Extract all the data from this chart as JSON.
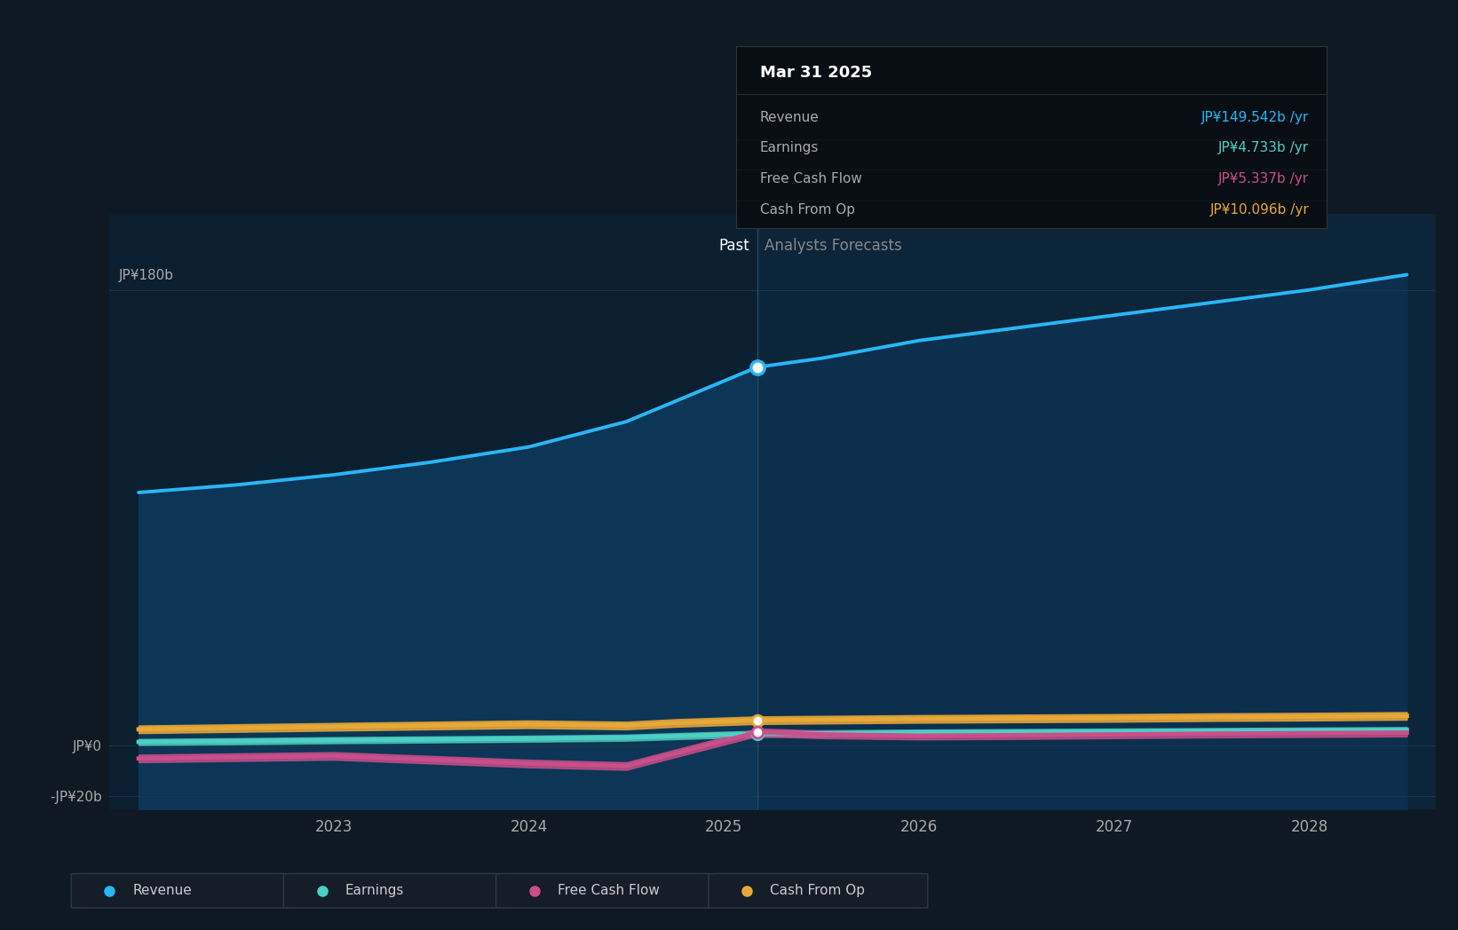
{
  "bg_color": "#0e1923",
  "plot_bg_past": "#0a1f30",
  "plot_bg_future": "#0c2235",
  "grid_color": "#1a3448",
  "x_past": [
    2022.0,
    2022.5,
    2023.0,
    2023.5,
    2024.0,
    2024.5,
    2024.75,
    2025.17
  ],
  "x_future": [
    2025.17,
    2025.5,
    2026.0,
    2026.5,
    2027.0,
    2027.5,
    2028.0,
    2028.5
  ],
  "rev_past": [
    100,
    103,
    107,
    112,
    118,
    128,
    136,
    149.5
  ],
  "rev_future": [
    149.5,
    153,
    160,
    165,
    170,
    175,
    180,
    186
  ],
  "earn_past": [
    1.5,
    1.8,
    2.2,
    2.5,
    2.8,
    3.2,
    3.8,
    4.733
  ],
  "earn_future": [
    4.733,
    4.9,
    5.2,
    5.4,
    5.6,
    5.8,
    6.0,
    6.2
  ],
  "fcf_past": [
    -5.0,
    -4.5,
    -4.0,
    -5.5,
    -7.0,
    -8.0,
    -3.0,
    5.337
  ],
  "fcf_future": [
    5.337,
    4.5,
    4.0,
    4.2,
    4.5,
    4.8,
    5.0,
    5.2
  ],
  "cop_past": [
    6.5,
    7.0,
    7.5,
    8.0,
    8.5,
    8.0,
    9.0,
    10.096
  ],
  "cop_future": [
    10.096,
    10.3,
    10.6,
    10.8,
    11.0,
    11.3,
    11.5,
    11.8
  ],
  "divider_x": 2025.17,
  "revenue_color": "#29b6f6",
  "earnings_color": "#4dd0c4",
  "fcf_color": "#c94f8a",
  "cashop_color": "#e8a838",
  "ylim_min": -25,
  "ylim_max": 210,
  "yticks": [
    -20,
    0,
    180
  ],
  "ytick_labels": [
    "-JP¥20b",
    "JP¥0",
    "JP¥180b"
  ],
  "xticks": [
    2023,
    2024,
    2025,
    2026,
    2027,
    2028
  ],
  "xtick_labels": [
    "2023",
    "2024",
    "2025",
    "2026",
    "2027",
    "2028"
  ],
  "past_label": "Past",
  "forecast_label": "Analysts Forecasts",
  "tooltip_title": "Mar 31 2025",
  "tooltip_rows": [
    {
      "label": "Revenue",
      "value": "JP¥149.542b /yr",
      "color": "#29b6f6"
    },
    {
      "label": "Earnings",
      "value": "JP¥4.733b /yr",
      "color": "#4dd0c4"
    },
    {
      "label": "Free Cash Flow",
      "value": "JP¥5.337b /yr",
      "color": "#c94f8a"
    },
    {
      "label": "Cash From Op",
      "value": "JP¥10.096b /yr",
      "color": "#e8a838"
    }
  ],
  "legend_items": [
    {
      "label": "Revenue",
      "color": "#29b6f6"
    },
    {
      "label": "Earnings",
      "color": "#4dd0c4"
    },
    {
      "label": "Free Cash Flow",
      "color": "#c94f8a"
    },
    {
      "label": "Cash From Op",
      "color": "#e8a838"
    }
  ]
}
